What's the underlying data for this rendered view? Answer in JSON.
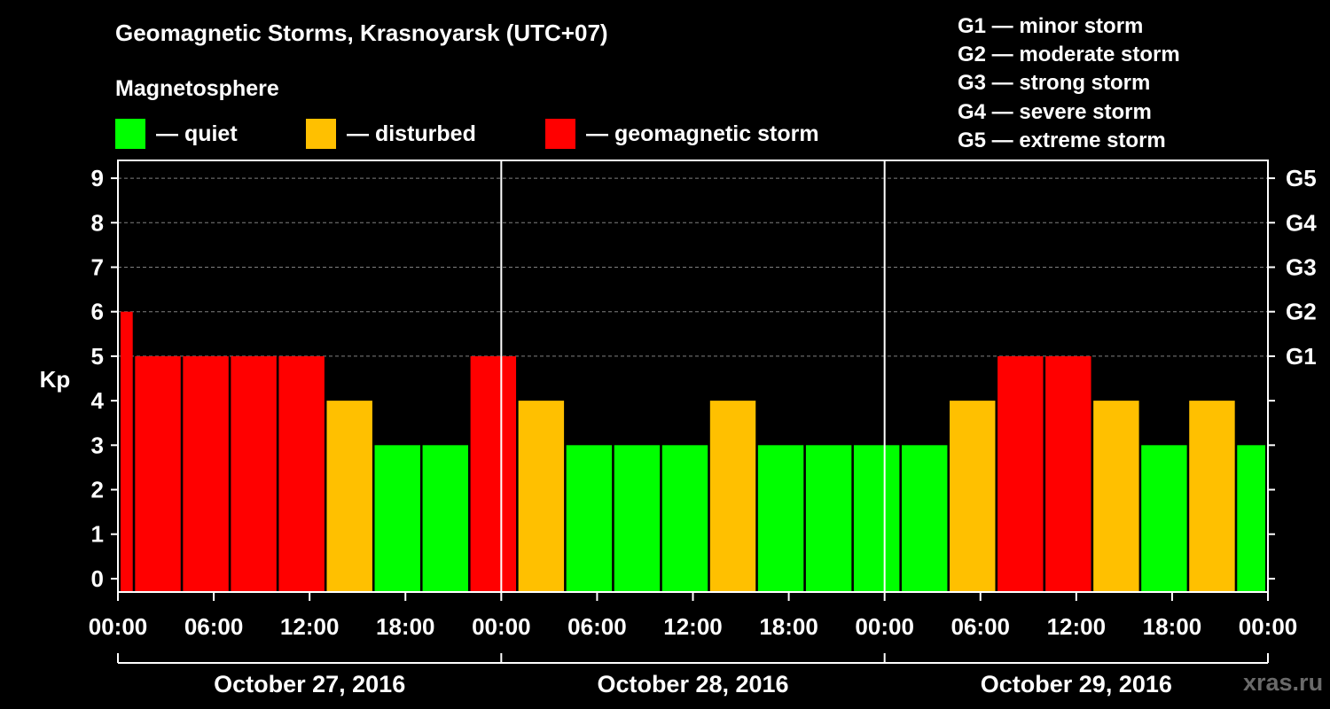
{
  "title": "Geomagnetic Storms, Krasnoyarsk (UTC+07)",
  "subtitle": "Magnetosphere",
  "legend": [
    {
      "label": "— quiet",
      "color": "#00ff00"
    },
    {
      "label": "— disturbed",
      "color": "#ffc000"
    },
    {
      "label": "— geomagnetic storm",
      "color": "#ff0000"
    }
  ],
  "storm_levels": [
    "G1 — minor storm",
    "G2 — moderate storm",
    "G3 — strong storm",
    "G4 — severe storm",
    "G5 — extreme storm"
  ],
  "watermark": "xras.ru",
  "colors": {
    "quiet": "#00ff00",
    "disturbed": "#ffc000",
    "storm": "#ff0000",
    "grid": "#808080",
    "axis": "#ffffff"
  },
  "chart_data": {
    "type": "bar",
    "ylabel": "Kp",
    "ylim": [
      -0.3,
      9.4
    ],
    "yticks": [
      0,
      1,
      2,
      3,
      4,
      5,
      6,
      7,
      8,
      9
    ],
    "right_ticks": [
      {
        "value": 5,
        "label": "G1"
      },
      {
        "value": 6,
        "label": "G2"
      },
      {
        "value": 7,
        "label": "G3"
      },
      {
        "value": 8,
        "label": "G4"
      },
      {
        "value": 9,
        "label": "G5"
      }
    ],
    "grid_levels": [
      5,
      6,
      7,
      8,
      9
    ],
    "x_range_hours": [
      0,
      72
    ],
    "xticks": [
      {
        "hour": 0,
        "label": "00:00"
      },
      {
        "hour": 6,
        "label": "06:00"
      },
      {
        "hour": 12,
        "label": "12:00"
      },
      {
        "hour": 18,
        "label": "18:00"
      },
      {
        "hour": 24,
        "label": "00:00"
      },
      {
        "hour": 30,
        "label": "06:00"
      },
      {
        "hour": 36,
        "label": "12:00"
      },
      {
        "hour": 42,
        "label": "18:00"
      },
      {
        "hour": 48,
        "label": "00:00"
      },
      {
        "hour": 54,
        "label": "06:00"
      },
      {
        "hour": 60,
        "label": "12:00"
      },
      {
        "hour": 66,
        "label": "18:00"
      },
      {
        "hour": 72,
        "label": "00:00"
      }
    ],
    "day_separators": [
      24,
      48
    ],
    "days": [
      {
        "label": "October 27, 2016",
        "start": 0,
        "end": 24
      },
      {
        "label": "October 28, 2016",
        "start": 24,
        "end": 48
      },
      {
        "label": "October 29, 2016",
        "start": 48,
        "end": 72
      }
    ],
    "bars": [
      {
        "start": 0,
        "end": 1,
        "kp": 6
      },
      {
        "start": 1,
        "end": 4,
        "kp": 5
      },
      {
        "start": 4,
        "end": 7,
        "kp": 5
      },
      {
        "start": 7,
        "end": 10,
        "kp": 5
      },
      {
        "start": 10,
        "end": 13,
        "kp": 5
      },
      {
        "start": 13,
        "end": 16,
        "kp": 4
      },
      {
        "start": 16,
        "end": 19,
        "kp": 3
      },
      {
        "start": 19,
        "end": 22,
        "kp": 3
      },
      {
        "start": 22,
        "end": 25,
        "kp": 5
      },
      {
        "start": 25,
        "end": 28,
        "kp": 4
      },
      {
        "start": 28,
        "end": 31,
        "kp": 3
      },
      {
        "start": 31,
        "end": 34,
        "kp": 3
      },
      {
        "start": 34,
        "end": 37,
        "kp": 3
      },
      {
        "start": 37,
        "end": 40,
        "kp": 4
      },
      {
        "start": 40,
        "end": 43,
        "kp": 3
      },
      {
        "start": 43,
        "end": 46,
        "kp": 3
      },
      {
        "start": 46,
        "end": 49,
        "kp": 3
      },
      {
        "start": 49,
        "end": 52,
        "kp": 3
      },
      {
        "start": 52,
        "end": 55,
        "kp": 4
      },
      {
        "start": 55,
        "end": 58,
        "kp": 5
      },
      {
        "start": 58,
        "end": 61,
        "kp": 5
      },
      {
        "start": 61,
        "end": 64,
        "kp": 4
      },
      {
        "start": 64,
        "end": 67,
        "kp": 3
      },
      {
        "start": 67,
        "end": 70,
        "kp": 4
      },
      {
        "start": 70,
        "end": 72,
        "kp": 3
      }
    ]
  }
}
